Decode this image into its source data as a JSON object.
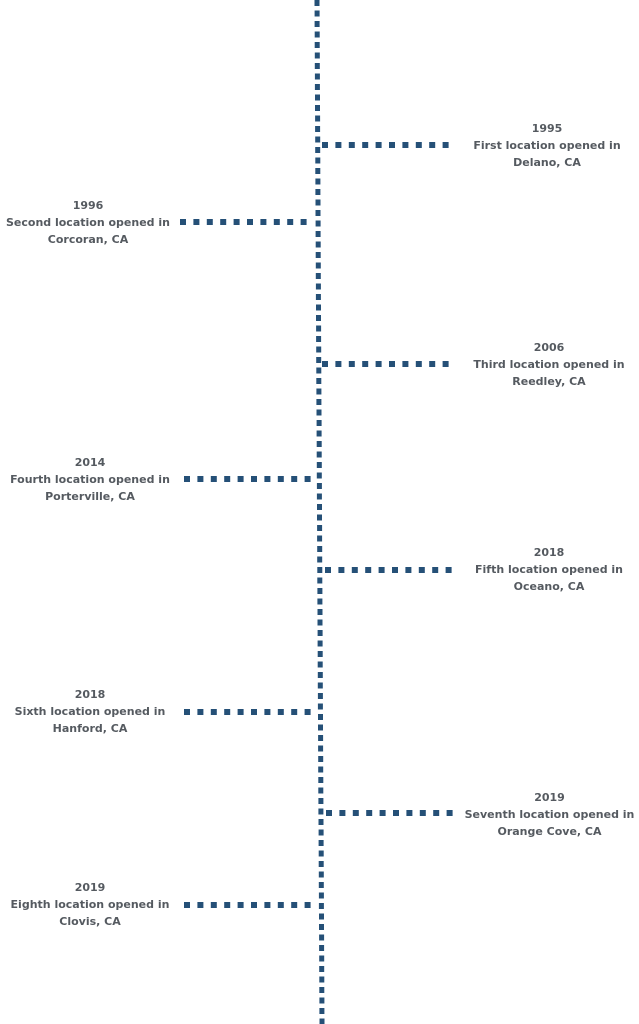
{
  "line_color": "#255077",
  "text_color": "#555a60",
  "events": [
    {
      "year": "1995",
      "line1": "First location opened in",
      "line2": "Delano, CA",
      "side": "right"
    },
    {
      "year": "1996",
      "line1": "Second location opened in",
      "line2": "Corcoran, CA",
      "side": "left"
    },
    {
      "year": "2006",
      "line1": "Third location opened in",
      "line2": "Reedley, CA",
      "side": "right"
    },
    {
      "year": "2014",
      "line1": "Fourth location opened in",
      "line2": "Porterville, CA",
      "side": "left"
    },
    {
      "year": "2018",
      "line1": "Fifth location opened in",
      "line2": "Oceano, CA",
      "side": "right"
    },
    {
      "year": "2018",
      "line1": "Sixth location opened in",
      "line2": "Hanford, CA",
      "side": "left"
    },
    {
      "year": "2019",
      "line1": "Seventh location opened in",
      "line2": "Orange Cove, CA",
      "side": "right"
    },
    {
      "year": "2019",
      "line1": "Eighth location opened in",
      "line2": "Clovis, CA",
      "side": "left"
    }
  ]
}
